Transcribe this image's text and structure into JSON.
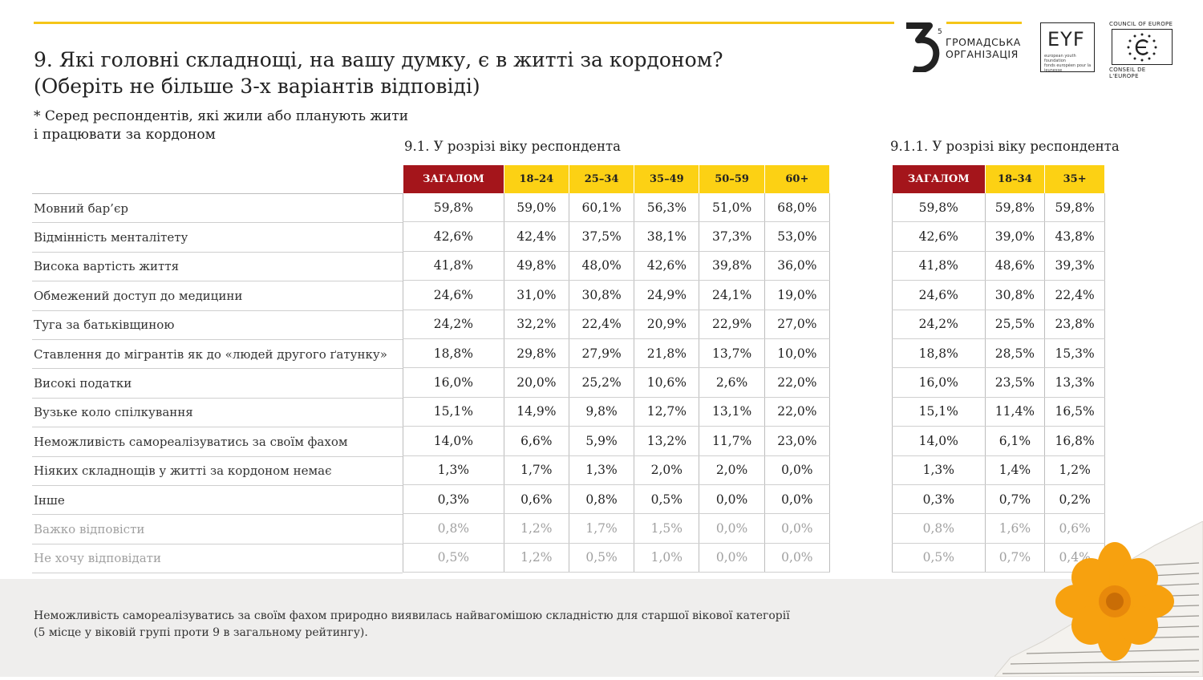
{
  "title_line1": "9. Які головні складнощі, на вашу думку, є в житті за кордоном?",
  "title_line2": "(Оберіть не більше 3-х варіантів відповіді)",
  "note_line1": "* Серед респондентів, які жили або планують жити",
  "note_line2": "і працювати за кордоном",
  "section1_label": "9.1. У розрізі віку респондента",
  "section2_label": "9.1.1. У розрізі віку респондента",
  "logos": {
    "org_line1": "ГРОМАДСЬКА",
    "org_line2": "ОРГАНІЗАЦІЯ",
    "org_mark": "3",
    "org_mark_small": "5",
    "eyf": "EYF",
    "eyf_small1": "european youth foundation",
    "eyf_small2": "fonds européen pour la jeunesse",
    "coe_top": "COUNCIL OF EUROPE",
    "coe_bottom": "CONSEIL DE L'EUROPE"
  },
  "table1": {
    "headers": [
      "ЗАГАЛОМ",
      "18–24",
      "25–34",
      "35–49",
      "50–59",
      "60+"
    ]
  },
  "table2": {
    "headers": [
      "ЗАГАЛОМ",
      "18–34",
      "35+"
    ]
  },
  "rows": [
    {
      "label": "Мовний бар’єр",
      "t1": [
        "59,8%",
        "59,0%",
        "60,1%",
        "56,3%",
        "51,0%",
        "68,0%"
      ],
      "t2": [
        "59,8%",
        "59,8%",
        "59,8%"
      ]
    },
    {
      "label": "Відмінність менталітету",
      "t1": [
        "42,6%",
        "42,4%",
        "37,5%",
        "38,1%",
        "37,3%",
        "53,0%"
      ],
      "t2": [
        "42,6%",
        "39,0%",
        "43,8%"
      ]
    },
    {
      "label": "Висока вартість життя",
      "t1": [
        "41,8%",
        "49,8%",
        "48,0%",
        "42,6%",
        "39,8%",
        "36,0%"
      ],
      "t2": [
        "41,8%",
        "48,6%",
        "39,3%"
      ]
    },
    {
      "label": "Обмежений доступ до медицини",
      "t1": [
        "24,6%",
        "31,0%",
        "30,8%",
        "24,9%",
        "24,1%",
        "19,0%"
      ],
      "t2": [
        "24,6%",
        "30,8%",
        "22,4%"
      ]
    },
    {
      "label": "Туга за батьківщиною",
      "t1": [
        "24,2%",
        "32,2%",
        "22,4%",
        "20,9%",
        "22,9%",
        "27,0%"
      ],
      "t2": [
        "24,2%",
        "25,5%",
        "23,8%"
      ]
    },
    {
      "label": "Ставлення до мігрантів як до «людей другого ґатунку»",
      "t1": [
        "18,8%",
        "29,8%",
        "27,9%",
        "21,8%",
        "13,7%",
        "10,0%"
      ],
      "t2": [
        "18,8%",
        "28,5%",
        "15,3%"
      ]
    },
    {
      "label": "Високі податки",
      "t1": [
        "16,0%",
        "20,0%",
        "25,2%",
        "10,6%",
        "2,6%",
        "22,0%"
      ],
      "t2": [
        "16,0%",
        "23,5%",
        "13,3%"
      ]
    },
    {
      "label": "Вузьке коло спілкування",
      "t1": [
        "15,1%",
        "14,9%",
        "9,8%",
        "12,7%",
        "13,1%",
        "22,0%"
      ],
      "t2": [
        "15,1%",
        "11,4%",
        "16,5%"
      ]
    },
    {
      "label": "Неможливість самореалізуватись за своїм фахом",
      "t1": [
        "14,0%",
        "6,6%",
        "5,9%",
        "13,2%",
        "11,7%",
        "23,0%"
      ],
      "t2": [
        "14,0%",
        "6,1%",
        "16,8%"
      ]
    },
    {
      "label": "Ніяких складнощів у житті за кордоном немає",
      "t1": [
        "1,3%",
        "1,7%",
        "1,3%",
        "2,0%",
        "2,0%",
        "0,0%"
      ],
      "t2": [
        "1,3%",
        "1,4%",
        "1,2%"
      ]
    },
    {
      "label": "Інше",
      "t1": [
        "0,3%",
        "0,6%",
        "0,8%",
        "0,5%",
        "0,0%",
        "0,0%"
      ],
      "t2": [
        "0,3%",
        "0,7%",
        "0,2%"
      ]
    },
    {
      "label": "Важко відповісти",
      "t1": [
        "0,8%",
        "1,2%",
        "1,7%",
        "1,5%",
        "0,0%",
        "0,0%"
      ],
      "t2": [
        "0,8%",
        "1,6%",
        "0,6%"
      ],
      "muted": true
    },
    {
      "label": "Не хочу відповідати",
      "t1": [
        "0,5%",
        "1,2%",
        "0,5%",
        "1,0%",
        "0,0%",
        "0,0%"
      ],
      "t2": [
        "0,5%",
        "0,7%",
        "0,4%"
      ],
      "muted": true
    }
  ],
  "footer_line1": "Неможливість самореалізуватись за своїм фахом природно виявилась найвагомішою складністю для старшої вікової категорії",
  "footer_line2": "(5 місце у віковій групі проти 9 в загальному рейтингу).",
  "colors": {
    "accent_yellow": "#fcd114",
    "accent_red": "#a4151b",
    "footer_bg": "#efeeed"
  }
}
